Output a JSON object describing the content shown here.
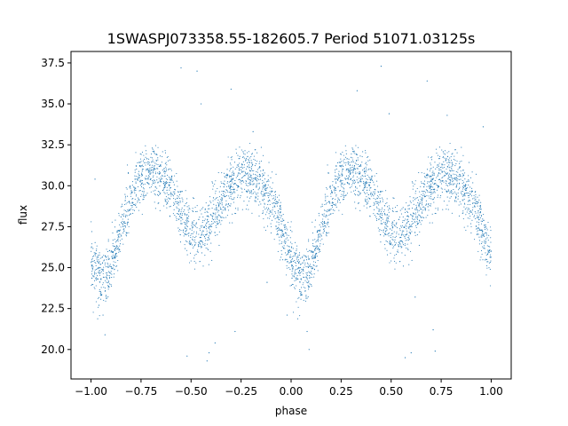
{
  "chart_data": {
    "type": "scatter",
    "title": "1SWASPJ073358.55-182605.7 Period 51071.03125s",
    "xlabel": "phase",
    "ylabel": "flux",
    "xlim": [
      -1.1,
      1.1
    ],
    "ylim": [
      18.2,
      38.2
    ],
    "x_ticks": [
      -1.0,
      -0.75,
      -0.5,
      -0.25,
      0.0,
      0.25,
      0.5,
      0.75,
      1.0
    ],
    "x_tick_labels": [
      "−1.00",
      "−0.75",
      "−0.50",
      "−0.25",
      "0.00",
      "0.25",
      "0.50",
      "0.75",
      "1.00"
    ],
    "y_ticks": [
      20.0,
      22.5,
      25.0,
      27.5,
      30.0,
      32.5,
      35.0,
      37.5
    ],
    "y_tick_labels": [
      "20.0",
      "22.5",
      "25.0",
      "27.5",
      "30.0",
      "32.5",
      "35.0",
      "37.5"
    ],
    "grid": false,
    "marker_color": "#1f77b4",
    "light_curve_profile": {
      "phase": [
        0.0,
        0.05,
        0.1,
        0.15,
        0.2,
        0.25,
        0.3,
        0.35,
        0.4,
        0.45,
        0.5,
        0.55,
        0.6,
        0.65,
        0.7,
        0.75,
        0.8,
        0.85,
        0.9,
        0.95,
        1.0
      ],
      "flux": [
        25.5,
        24.3,
        24.9,
        27.3,
        29.3,
        30.3,
        30.8,
        30.5,
        29.6,
        28.3,
        27.2,
        26.9,
        27.8,
        29.1,
        30.1,
        30.6,
        30.6,
        30.0,
        29.0,
        27.5,
        25.5
      ]
    },
    "outliers": [
      [
        -0.98,
        30.4
      ],
      [
        -0.96,
        22.7
      ],
      [
        -0.94,
        22.1
      ],
      [
        -0.93,
        20.9
      ],
      [
        -0.85,
        28.1
      ],
      [
        -0.55,
        37.2
      ],
      [
        -0.52,
        19.6
      ],
      [
        -0.47,
        37.0
      ],
      [
        -0.45,
        35.0
      ],
      [
        -0.42,
        19.3
      ],
      [
        -0.41,
        19.8
      ],
      [
        -0.38,
        20.4
      ],
      [
        -0.3,
        35.9
      ],
      [
        -0.28,
        21.1
      ],
      [
        -0.19,
        33.3
      ],
      [
        -0.12,
        24.1
      ],
      [
        -0.02,
        22.1
      ],
      [
        0.08,
        21.1
      ],
      [
        0.09,
        20.0
      ],
      [
        0.33,
        35.8
      ],
      [
        0.45,
        37.3
      ],
      [
        0.49,
        34.4
      ],
      [
        0.57,
        19.5
      ],
      [
        0.6,
        19.8
      ],
      [
        0.62,
        23.2
      ],
      [
        0.68,
        36.4
      ],
      [
        0.71,
        21.2
      ],
      [
        0.72,
        19.9
      ],
      [
        0.78,
        34.3
      ],
      [
        0.96,
        33.6
      ]
    ],
    "point_count": 3800
  }
}
